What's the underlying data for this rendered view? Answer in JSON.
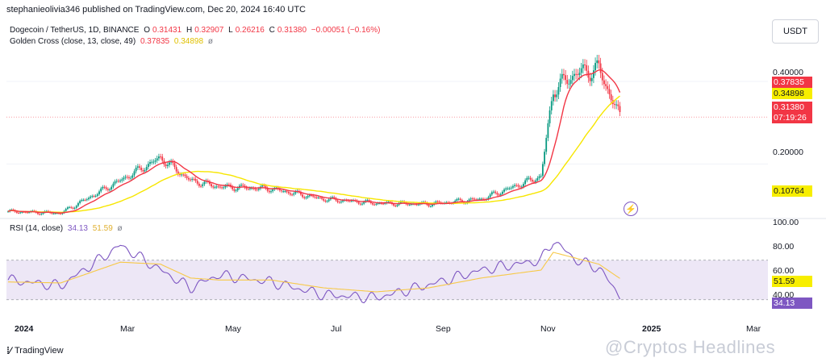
{
  "publisher": "stephanieolivia346 published on TradingView.com, Dec 20, 2024 16:40 UTC",
  "legend": {
    "symbol": "Dogecoin / TetherUS, 1D, BINANCE",
    "o_label": "O",
    "o": "0.31431",
    "h_label": "H",
    "h": "0.32907",
    "l_label": "L",
    "l": "0.26216",
    "c_label": "C",
    "c": "0.31380",
    "change": "−0.00051 (−0.16%)",
    "ma_name": "Golden Cross (close, 13, close, 49)",
    "ma_fast": "0.37835",
    "ma_slow": "0.34898",
    "eye": "ø"
  },
  "rsi_legend": {
    "name": "RSI (14, close)",
    "rsi": "34.13",
    "ma": "51.59",
    "eye": "ø"
  },
  "currency": "USDT",
  "price_ticks": [
    "0.40000",
    "0.20000"
  ],
  "price_badges": {
    "ma_fast": "0.37835",
    "ma_slow": "0.34898",
    "last": "0.31380",
    "countdown": "07:19:26",
    "low_marker": "0.10764"
  },
  "rsi_ticks": [
    "100.00",
    "80.00",
    "60.00",
    "40.00"
  ],
  "rsi_badges": {
    "ma": "51.59",
    "rsi": "34.13"
  },
  "x_ticks": [
    "2024",
    "Mar",
    "May",
    "Jul",
    "Sep",
    "Nov",
    "2025",
    "Mar"
  ],
  "footer_logo": "TradingView",
  "watermark": "@Cryptos Headlines",
  "colors": {
    "up": "#089981",
    "down": "#f23645",
    "ma_fast": "#f23645",
    "ma_slow": "#f7e600",
    "rsi": "#7e57c2",
    "rsi_ma": "#f7c948",
    "rsi_band": "#ede7f6"
  },
  "chart_data": [
    {
      "type": "candlestick",
      "title": "Dogecoin / TetherUS, 1D, BINANCE",
      "x": [
        "2024-01",
        "2024-02",
        "2024-03-05",
        "2024-03-28",
        "2024-04-15",
        "2024-05",
        "2024-06",
        "2024-07",
        "2024-08",
        "2024-09",
        "2024-10",
        "2024-11-05",
        "2024-11-12",
        "2024-11-25",
        "2024-12-08",
        "2024-12-20"
      ],
      "close": [
        0.085,
        0.081,
        0.16,
        0.215,
        0.16,
        0.145,
        0.14,
        0.115,
        0.105,
        0.103,
        0.115,
        0.17,
        0.38,
        0.42,
        0.43,
        0.3138
      ],
      "series": [
        {
          "name": "Golden Cross fast (13)",
          "last": 0.37835
        },
        {
          "name": "Golden Cross slow (49)",
          "last": 0.34898
        }
      ],
      "ylim": [
        0.07,
        0.48
      ],
      "grid": true
    },
    {
      "type": "line",
      "title": "RSI (14, close)",
      "x": [
        "2024-01",
        "2024-02",
        "2024-03-05",
        "2024-03-28",
        "2024-04-15",
        "2024-05",
        "2024-06",
        "2024-07",
        "2024-08",
        "2024-09",
        "2024-10",
        "2024-11-05",
        "2024-11-12",
        "2024-11-25",
        "2024-12-08",
        "2024-12-20"
      ],
      "series": [
        {
          "name": "RSI",
          "values": [
            50,
            44,
            85,
            60,
            42,
            55,
            48,
            35,
            32,
            45,
            60,
            70,
            90,
            70,
            62,
            34.13
          ]
        },
        {
          "name": "RSI MA",
          "values": [
            48,
            47,
            68,
            66,
            52,
            50,
            50,
            42,
            38,
            42,
            52,
            60,
            78,
            72,
            66,
            51.59
          ]
        }
      ],
      "ylim": [
        20,
        100
      ],
      "bands": [
        30,
        70
      ]
    }
  ]
}
